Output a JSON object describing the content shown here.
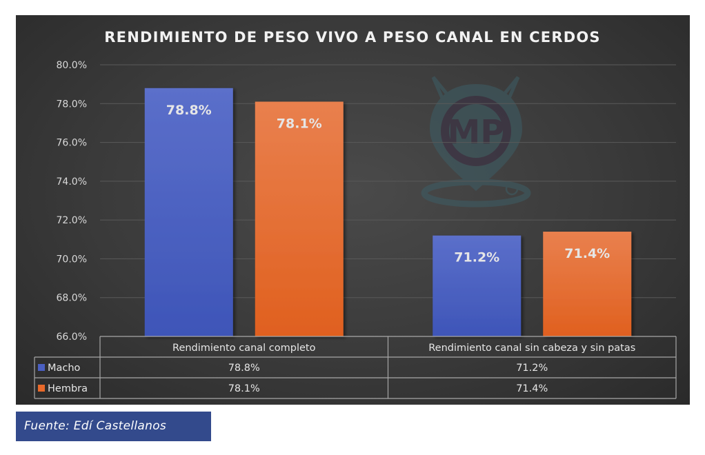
{
  "chart_data": {
    "type": "bar",
    "title": "RENDIMIENTO DE PESO VIVO A PESO CANAL EN CERDOS",
    "categories": [
      "Rendimiento canal completo",
      "Rendimiento canal sin cabeza y sin patas"
    ],
    "series": [
      {
        "name": "Macho",
        "values": [
          78.8,
          71.2
        ],
        "labels": [
          "78.8%",
          "71.2%"
        ],
        "color": "#4a5fc1"
      },
      {
        "name": "Hembra",
        "values": [
          78.1,
          71.4
        ],
        "labels": [
          "78.1%",
          "71.4%"
        ],
        "color": "#e8692a"
      }
    ],
    "ylim": [
      66,
      80
    ],
    "yticks": [
      66,
      68,
      70,
      72,
      74,
      76,
      78,
      80
    ],
    "ytick_labels": [
      "66.0%",
      "68.0%",
      "70.0%",
      "72.0%",
      "74.0%",
      "76.0%",
      "78.0%",
      "80.0%"
    ],
    "xlabel": "",
    "ylabel": "",
    "grid": true,
    "legend": "data-table",
    "data_table": {
      "rows": [
        {
          "name": "Macho",
          "cells": [
            "78.8%",
            "71.2%"
          ]
        },
        {
          "name": "Hembra",
          "cells": [
            "78.1%",
            "71.4%"
          ]
        }
      ]
    }
  },
  "watermark": {
    "text": "MP",
    "icon": "pig-location-pin-logo"
  },
  "source": {
    "label": "Fuente: Edí Castellanos"
  }
}
